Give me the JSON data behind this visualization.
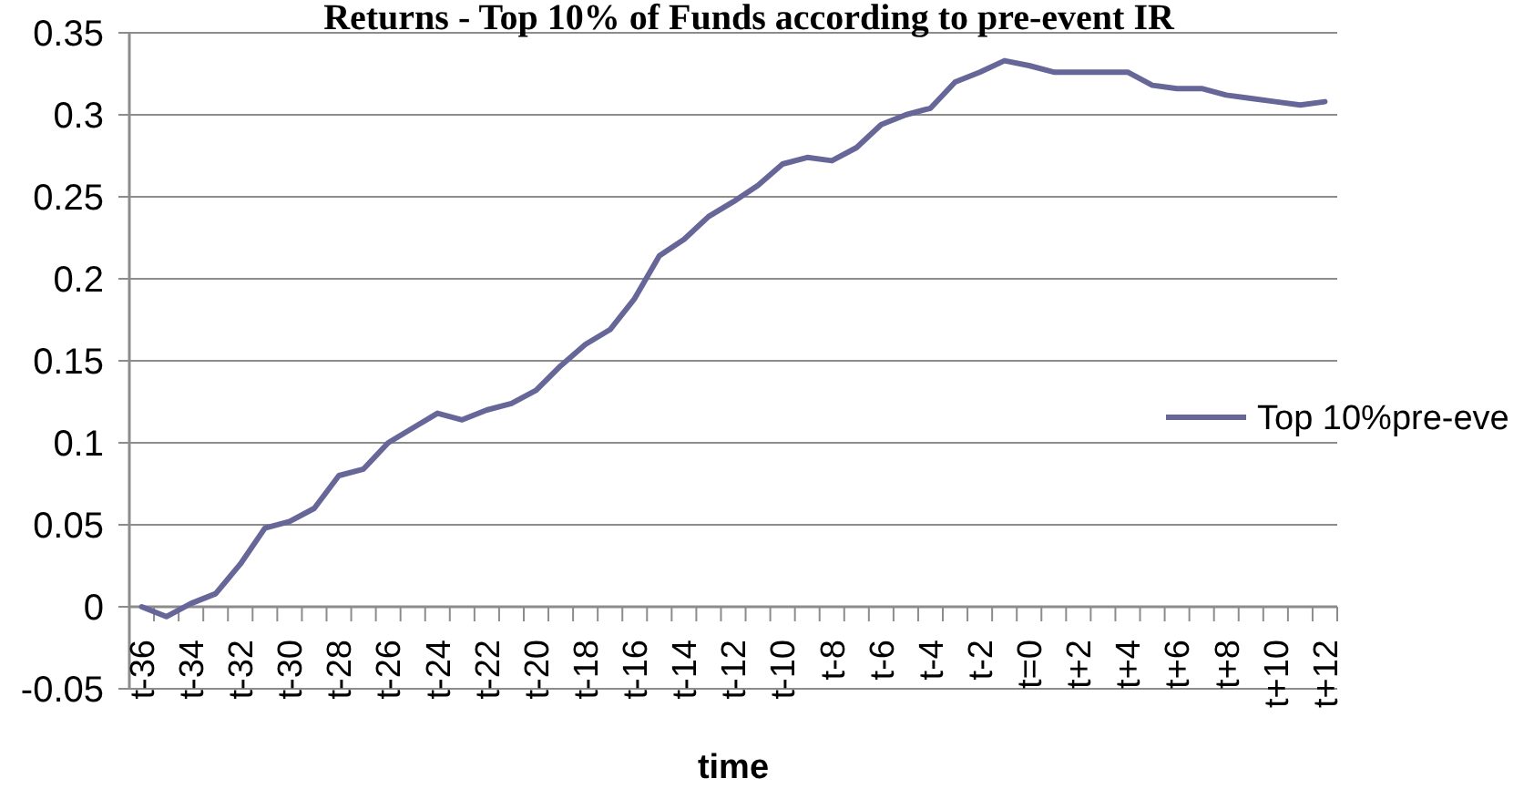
{
  "chart_data": {
    "type": "line",
    "title": "Returns - Top 10% of Funds according to pre-event IR",
    "xlabel": "time",
    "categories": [
      "t-36",
      null,
      "t-34",
      null,
      "t-32",
      null,
      "t-30",
      null,
      "t-28",
      null,
      "t-26",
      null,
      "t-24",
      null,
      "t-22",
      null,
      "t-20",
      null,
      "t-18",
      null,
      "t-16",
      null,
      "t-14",
      null,
      "t-12",
      null,
      "t-10",
      null,
      "t-8",
      null,
      "t-6",
      null,
      "t-4",
      null,
      "t-2",
      null,
      "t=0",
      null,
      "t+2",
      null,
      "t+4",
      null,
      "t+6",
      null,
      "t+8",
      null,
      "t+10",
      null,
      "t+12"
    ],
    "series": [
      {
        "name": "Top 10%pre-eve",
        "color": "#666699",
        "values": [
          0,
          -0.006,
          0.002,
          0.008,
          0.026,
          0.048,
          0.052,
          0.06,
          0.08,
          0.084,
          0.1,
          0.109,
          0.118,
          0.114,
          0.12,
          0.124,
          0.132,
          0.147,
          0.16,
          0.169,
          0.188,
          0.214,
          0.224,
          0.238,
          0.247,
          0.257,
          0.27,
          0.274,
          0.272,
          0.28,
          0.294,
          0.3,
          0.304,
          0.32,
          0.326,
          0.333,
          0.33,
          0.326,
          0.326,
          0.326,
          0.326,
          0.318,
          0.316,
          0.316,
          0.312,
          0.31,
          0.308,
          0.306,
          0.308
        ]
      }
    ],
    "ylim": [
      -0.05,
      0.35
    ],
    "yticks": [
      -0.05,
      0,
      0.05,
      0.1,
      0.15,
      0.2,
      0.25,
      0.3,
      0.35
    ],
    "grid": "y",
    "legend": "right"
  }
}
